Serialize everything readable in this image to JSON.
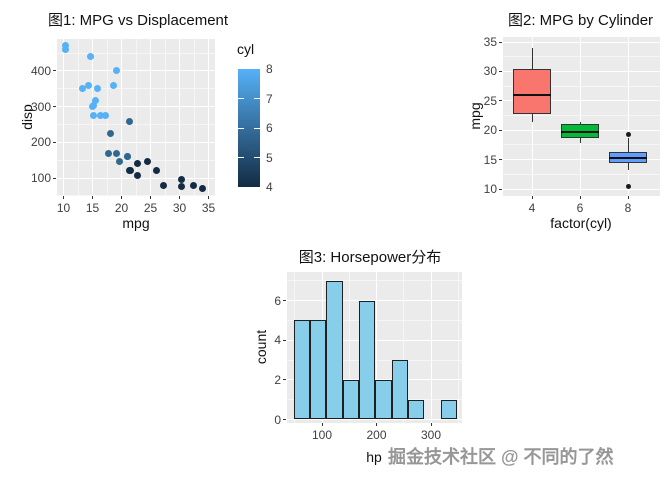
{
  "watermark": {
    "text": "掘金技术社区 @ 不同的了然"
  },
  "colors": {
    "panel_background": "#EBEBEB",
    "grid_major": "#FFFFFF",
    "histogram_fill": "#87CEEB",
    "box_fill_cyl4": "#F8766D",
    "box_fill_cyl6": "#00BA38",
    "box_fill_cyl8": "#619CFF",
    "gradient_high": "#56B1F7",
    "gradient_low": "#132B43"
  },
  "chart_data": [
    {
      "type": "scatter",
      "title": "图1: MPG vs Displacement",
      "xlabel": "mpg",
      "ylabel": "disp",
      "x_ticks": [
        10,
        15,
        20,
        25,
        30,
        35
      ],
      "y_ticks": [
        100,
        200,
        300,
        400
      ],
      "x_minor": [
        12.5,
        17.5,
        22.5,
        27.5,
        32.5
      ],
      "y_minor": [
        50,
        150,
        250,
        350,
        450
      ],
      "xlim": [
        8.9,
        35.1
      ],
      "ylim": [
        50,
        490
      ],
      "grid": true,
      "legend": {
        "title": "cyl",
        "position": "right",
        "breaks": [
          8,
          7,
          6,
          5,
          4
        ],
        "limits": [
          4,
          8
        ],
        "high_color": "#56B1F7",
        "low_color": "#132B43"
      },
      "point_colors": {
        "4": "#132B43",
        "6": "#31688E",
        "8": "#56B1F7"
      },
      "columns": [
        "mpg",
        "disp",
        "cyl"
      ],
      "points": [
        [
          21.0,
          160.0,
          6
        ],
        [
          21.0,
          160.0,
          6
        ],
        [
          22.8,
          108.0,
          4
        ],
        [
          21.4,
          258.0,
          6
        ],
        [
          18.7,
          360.0,
          8
        ],
        [
          18.1,
          225.0,
          6
        ],
        [
          14.3,
          360.0,
          8
        ],
        [
          24.4,
          146.7,
          4
        ],
        [
          22.8,
          140.8,
          4
        ],
        [
          19.2,
          167.6,
          6
        ],
        [
          17.8,
          167.6,
          6
        ],
        [
          16.4,
          275.8,
          8
        ],
        [
          17.3,
          275.8,
          8
        ],
        [
          15.2,
          275.8,
          8
        ],
        [
          10.4,
          472.0,
          8
        ],
        [
          10.4,
          460.0,
          8
        ],
        [
          14.7,
          440.0,
          8
        ],
        [
          32.4,
          78.7,
          4
        ],
        [
          30.4,
          75.7,
          4
        ],
        [
          33.9,
          71.1,
          4
        ],
        [
          21.5,
          120.1,
          4
        ],
        [
          15.5,
          318.0,
          8
        ],
        [
          15.2,
          304.0,
          8
        ],
        [
          13.3,
          350.0,
          8
        ],
        [
          19.2,
          400.0,
          8
        ],
        [
          27.3,
          79.0,
          4
        ],
        [
          26.0,
          120.3,
          4
        ],
        [
          30.4,
          95.1,
          4
        ],
        [
          15.8,
          351.0,
          8
        ],
        [
          19.7,
          145.0,
          6
        ],
        [
          15.0,
          301.0,
          8
        ],
        [
          21.4,
          121.0,
          4
        ]
      ]
    },
    {
      "type": "boxplot",
      "title": "图2: MPG by Cylinder",
      "xlabel": "factor(cyl)",
      "ylabel": "mpg",
      "categories": [
        "4",
        "6",
        "8"
      ],
      "y_ticks": [
        10,
        15,
        20,
        25,
        30,
        35
      ],
      "y_minor": [
        12.5,
        17.5,
        22.5,
        27.5,
        32.5
      ],
      "ylim": [
        9,
        35.5
      ],
      "grid": true,
      "boxes": [
        {
          "category": "4",
          "color": "#F8766D",
          "whisker_low": 21.4,
          "q1": 22.8,
          "median": 26.0,
          "q3": 30.4,
          "whisker_high": 33.9,
          "outliers": []
        },
        {
          "category": "6",
          "color": "#00BA38",
          "whisker_low": 17.8,
          "q1": 18.65,
          "median": 19.7,
          "q3": 21.0,
          "whisker_high": 21.4,
          "outliers": []
        },
        {
          "category": "8",
          "color": "#619CFF",
          "whisker_low": 13.3,
          "q1": 14.4,
          "median": 15.2,
          "q3": 16.25,
          "whisker_high": 18.7,
          "outliers": [
            10.4,
            19.2
          ]
        }
      ]
    },
    {
      "type": "histogram",
      "title": "图3: Horsepower分布",
      "xlabel": "hp",
      "ylabel": "count",
      "x_ticks": [
        100,
        200,
        300
      ],
      "x_minor": [
        50,
        150,
        250,
        350
      ],
      "y_ticks": [
        0,
        2,
        4,
        6
      ],
      "y_minor": [
        1,
        3,
        5,
        7
      ],
      "bin_start": 50,
      "bin_width": 30,
      "counts": [
        5,
        5,
        7,
        2,
        6,
        2,
        3,
        1,
        0,
        1
      ],
      "ylim": [
        0,
        7.4
      ],
      "grid": true
    }
  ]
}
